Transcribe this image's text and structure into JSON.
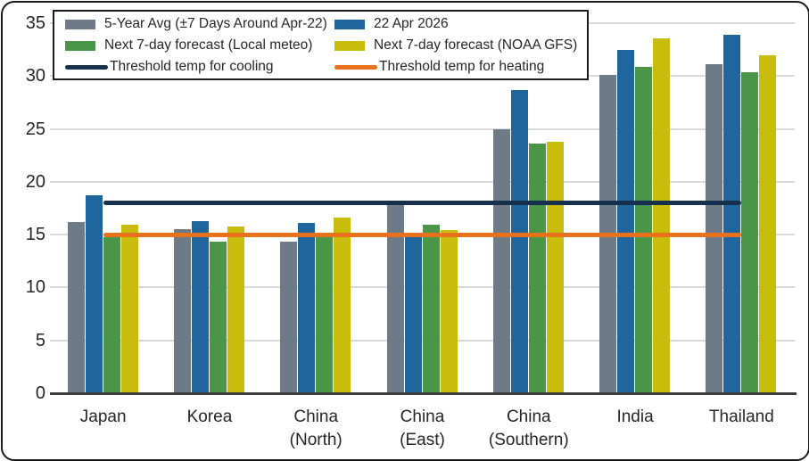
{
  "chart_data": {
    "type": "bar",
    "title": "",
    "xlabel": "",
    "ylabel": "",
    "categories": [
      "Japan",
      "Korea",
      "China\n(North)",
      "China\n(East)",
      "China\n(Southern)",
      "India",
      "Thailand"
    ],
    "series": [
      {
        "name": "5-Year Avg (±7 Days Around Apr-22)",
        "color": "#6D7A88",
        "values": [
          16.2,
          15.5,
          14.3,
          17.9,
          25.0,
          30.1,
          31.1
        ]
      },
      {
        "name": "22 Apr 2026",
        "color": "#1F669E",
        "values": [
          18.7,
          16.3,
          16.1,
          14.9,
          28.7,
          32.5,
          33.9
        ]
      },
      {
        "name": "Next 7-day forecast (Local meteo)",
        "color": "#4B9549",
        "values": [
          14.8,
          14.3,
          14.9,
          15.9,
          23.6,
          30.9,
          30.4
        ]
      },
      {
        "name": "Next 7-day forecast (NOAA GFS)",
        "color": "#C8BD0C",
        "values": [
          15.9,
          15.8,
          16.6,
          15.4,
          23.8,
          33.6,
          32.0
        ]
      }
    ],
    "threshold_lines": [
      {
        "name": "Threshold temp for cooling",
        "color": "#14304D",
        "value": 18
      },
      {
        "name": "Threshold temp for heating",
        "color": "#E7711C",
        "value": 15
      }
    ],
    "ylim": [
      0,
      35
    ],
    "yticks": [
      0,
      5,
      10,
      15,
      20,
      25,
      30,
      35
    ],
    "grid": true,
    "gridline_color": "#D9D9D9",
    "axis_color": "#3C3C3C",
    "text_color": "#262626",
    "legend_position": "top-left",
    "legend_border_color": "#1b1b1b",
    "frame_border_color": "#1a1a1a",
    "background_color": "#ffffff"
  }
}
